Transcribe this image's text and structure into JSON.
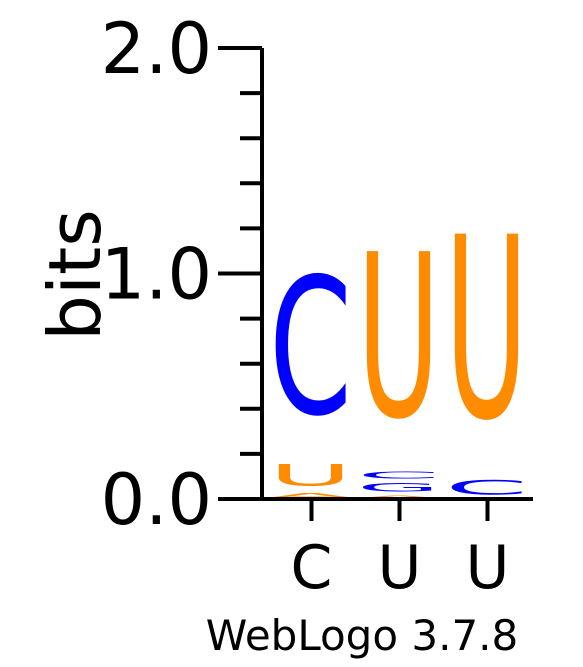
{
  "chart_data": {
    "type": "sequence-logo",
    "ylabel": "bits",
    "ylim": [
      0,
      2
    ],
    "yticks": [
      {
        "value": 0,
        "label": "0.0"
      },
      {
        "value": 1,
        "label": "1.0"
      },
      {
        "value": 2,
        "label": "2.0"
      }
    ],
    "minor_tick_step": 0.2,
    "colors": {
      "U": "#ff8c00",
      "C": "#0000ff",
      "A": "#ff8c00",
      "G": "#0000ff"
    },
    "positions": [
      {
        "label": "C",
        "stack": [
          {
            "letter": "A",
            "bits": 0.03
          },
          {
            "letter": "U",
            "bits": 0.15
          },
          {
            "letter": "C",
            "bits": 0.98
          }
        ]
      },
      {
        "label": "U",
        "stack": [
          {
            "letter": "A",
            "bits": 0.02
          },
          {
            "letter": "G",
            "bits": 0.06
          },
          {
            "letter": "C",
            "bits": 0.05
          },
          {
            "letter": "U",
            "bits": 1.17
          }
        ]
      },
      {
        "label": "U",
        "stack": [
          {
            "letter": "C",
            "bits": 0.1
          },
          {
            "letter": "U",
            "bits": 1.3
          }
        ]
      }
    ]
  },
  "footer": "WebLogo 3.7.8"
}
